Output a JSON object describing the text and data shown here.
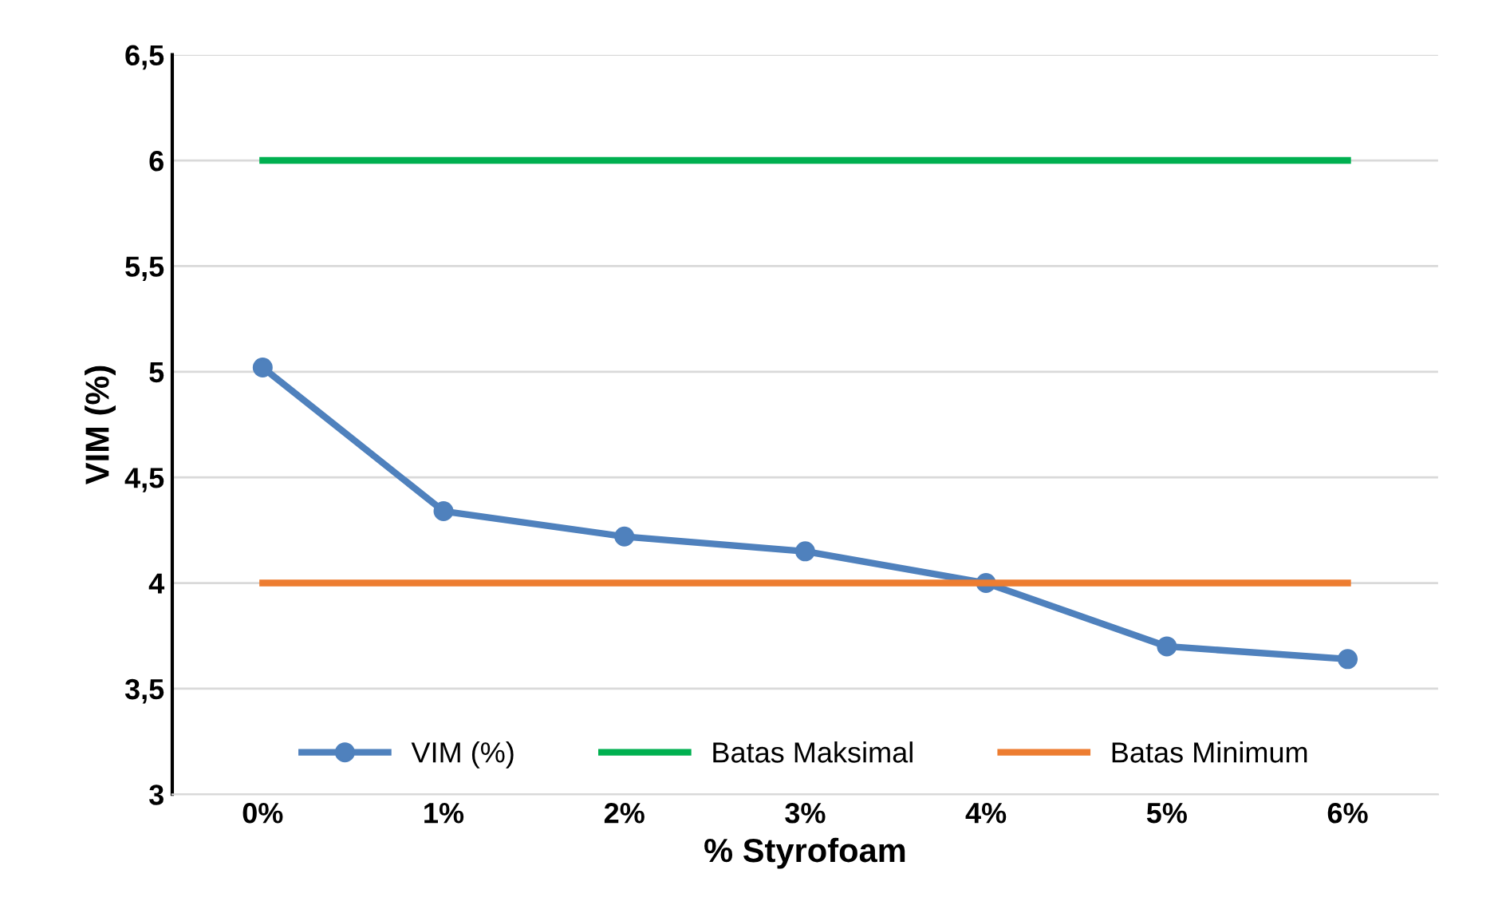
{
  "chart_data": {
    "type": "line",
    "xlabel": "% Styrofoam",
    "ylabel": "VIM (%)",
    "categories": [
      "0%",
      "1%",
      "2%",
      "3%",
      "4%",
      "5%",
      "6%"
    ],
    "series": [
      {
        "name": "VIM (%)",
        "color": "#4f81bd",
        "values": [
          5.02,
          4.34,
          4.22,
          4.15,
          4.0,
          3.7,
          3.64
        ],
        "marker": "circle"
      },
      {
        "name": "Batas Maksimal",
        "color": "#00b050",
        "values": [
          6,
          6,
          6,
          6,
          6,
          6,
          6
        ]
      },
      {
        "name": "Batas Minimum",
        "color": "#ed7d31",
        "values": [
          4,
          4,
          4,
          4,
          4,
          4,
          4
        ]
      }
    ],
    "ylim": [
      3,
      6.5
    ],
    "yticks": [
      3,
      {
        "value": 3.5,
        "label": "3,5"
      },
      4,
      {
        "value": 4.5,
        "label": "4,5"
      },
      5,
      {
        "value": 5.5,
        "label": "5,5"
      },
      6,
      {
        "value": 6.5,
        "label": "6,5"
      }
    ],
    "grid": "y",
    "legend": "bottom",
    "line_style": "solid"
  }
}
